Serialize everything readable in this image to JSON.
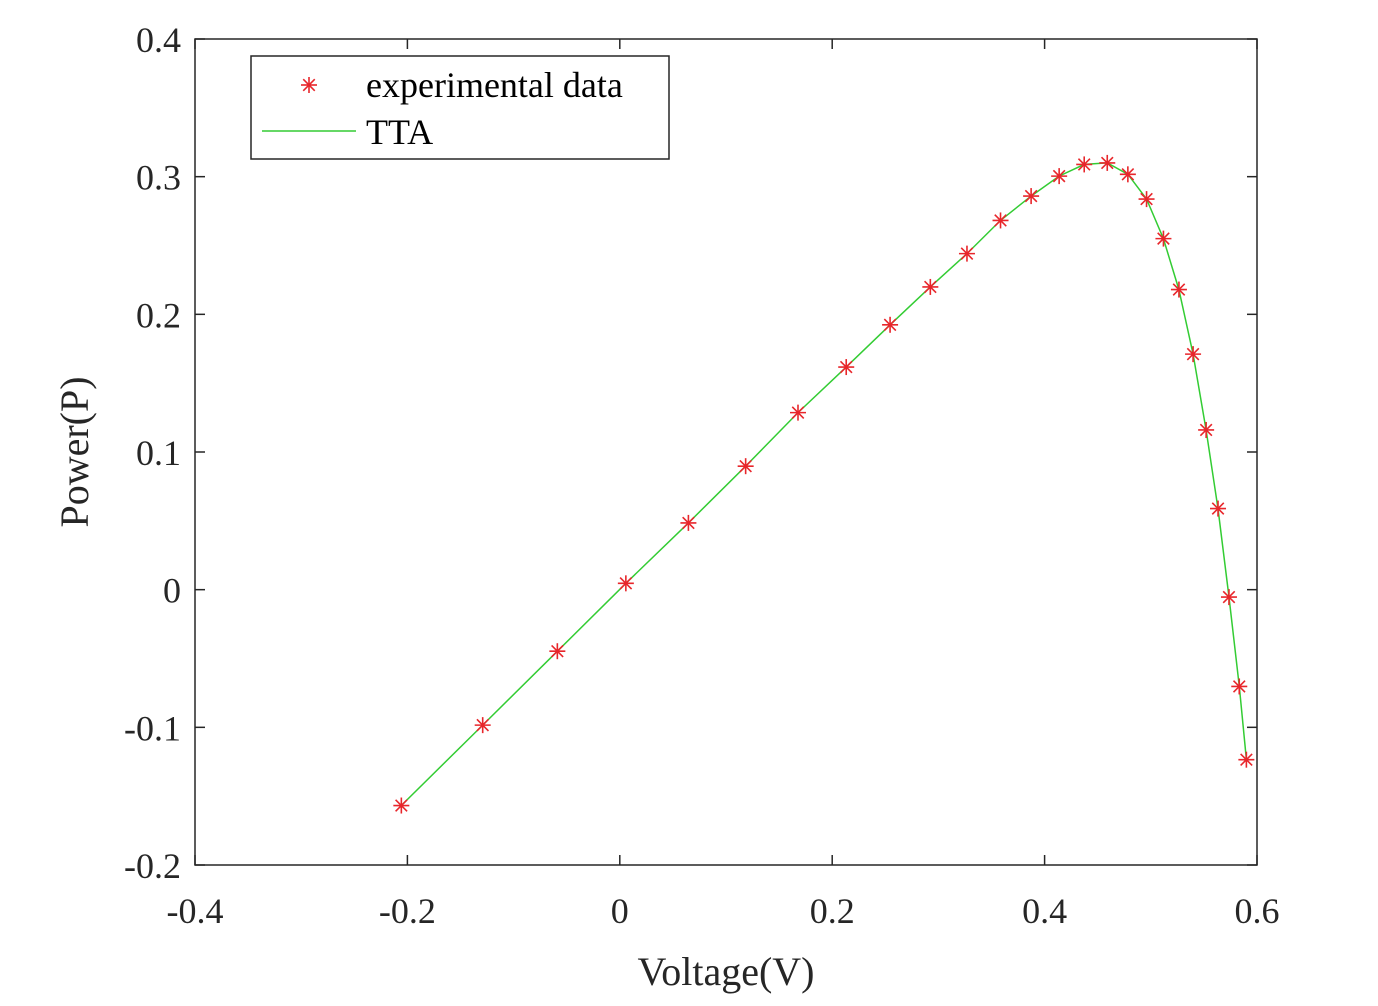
{
  "chart_data": {
    "type": "line",
    "title": "",
    "xlabel": "Voltage(V)",
    "ylabel": "Power(P)",
    "xlim": [
      -0.4,
      0.6
    ],
    "ylim": [
      -0.2,
      0.4
    ],
    "xticks": [
      -0.4,
      -0.2,
      0,
      0.2,
      0.4,
      0.6
    ],
    "xtick_labels": [
      "-0.4",
      "-0.2",
      "0",
      "0.2",
      "0.4",
      "0.6"
    ],
    "yticks": [
      -0.2,
      -0.1,
      0,
      0.1,
      0.2,
      0.3,
      0.4
    ],
    "ytick_labels": [
      "-0.2",
      "-0.1",
      "0",
      "0.1",
      "0.2",
      "0.3",
      "0.4"
    ],
    "grid": false,
    "legend_position": "top-left",
    "series": [
      {
        "name": "experimental data",
        "style": "markers",
        "marker": "asterisk",
        "color": "#e8262b",
        "x": [
          -0.2057,
          -0.1291,
          -0.0588,
          0.0057,
          0.0646,
          0.1185,
          0.1678,
          0.2132,
          0.2545,
          0.2924,
          0.3269,
          0.3585,
          0.3873,
          0.4137,
          0.4373,
          0.459,
          0.4784,
          0.496,
          0.5119,
          0.5265,
          0.5398,
          0.5521,
          0.5633,
          0.5736,
          0.5833,
          0.59
        ],
        "y": [
          -0.1568,
          -0.0984,
          -0.0447,
          0.0046,
          0.0485,
          0.0897,
          0.1286,
          0.1617,
          0.1924,
          0.2199,
          0.2441,
          0.2682,
          0.2859,
          0.3004,
          0.3089,
          0.31,
          0.3017,
          0.2837,
          0.255,
          0.218,
          0.1711,
          0.116,
          0.0589,
          -0.0054,
          -0.0703,
          -0.1235
        ]
      },
      {
        "name": "TTA",
        "style": "line",
        "color": "#33cc33",
        "x": [
          -0.2057,
          -0.1291,
          -0.0588,
          0.0057,
          0.0646,
          0.1185,
          0.1678,
          0.2132,
          0.2545,
          0.2924,
          0.3269,
          0.3585,
          0.3873,
          0.4137,
          0.4373,
          0.459,
          0.4784,
          0.496,
          0.5119,
          0.5265,
          0.5398,
          0.5521,
          0.5633,
          0.5736,
          0.5833,
          0.59
        ],
        "y": [
          -0.1568,
          -0.0984,
          -0.0447,
          0.0046,
          0.0485,
          0.0897,
          0.1286,
          0.1617,
          0.1924,
          0.2199,
          0.2441,
          0.2682,
          0.2859,
          0.3004,
          0.3089,
          0.31,
          0.3017,
          0.2837,
          0.255,
          0.218,
          0.1711,
          0.116,
          0.0589,
          -0.0054,
          -0.0703,
          -0.1235
        ]
      }
    ]
  }
}
